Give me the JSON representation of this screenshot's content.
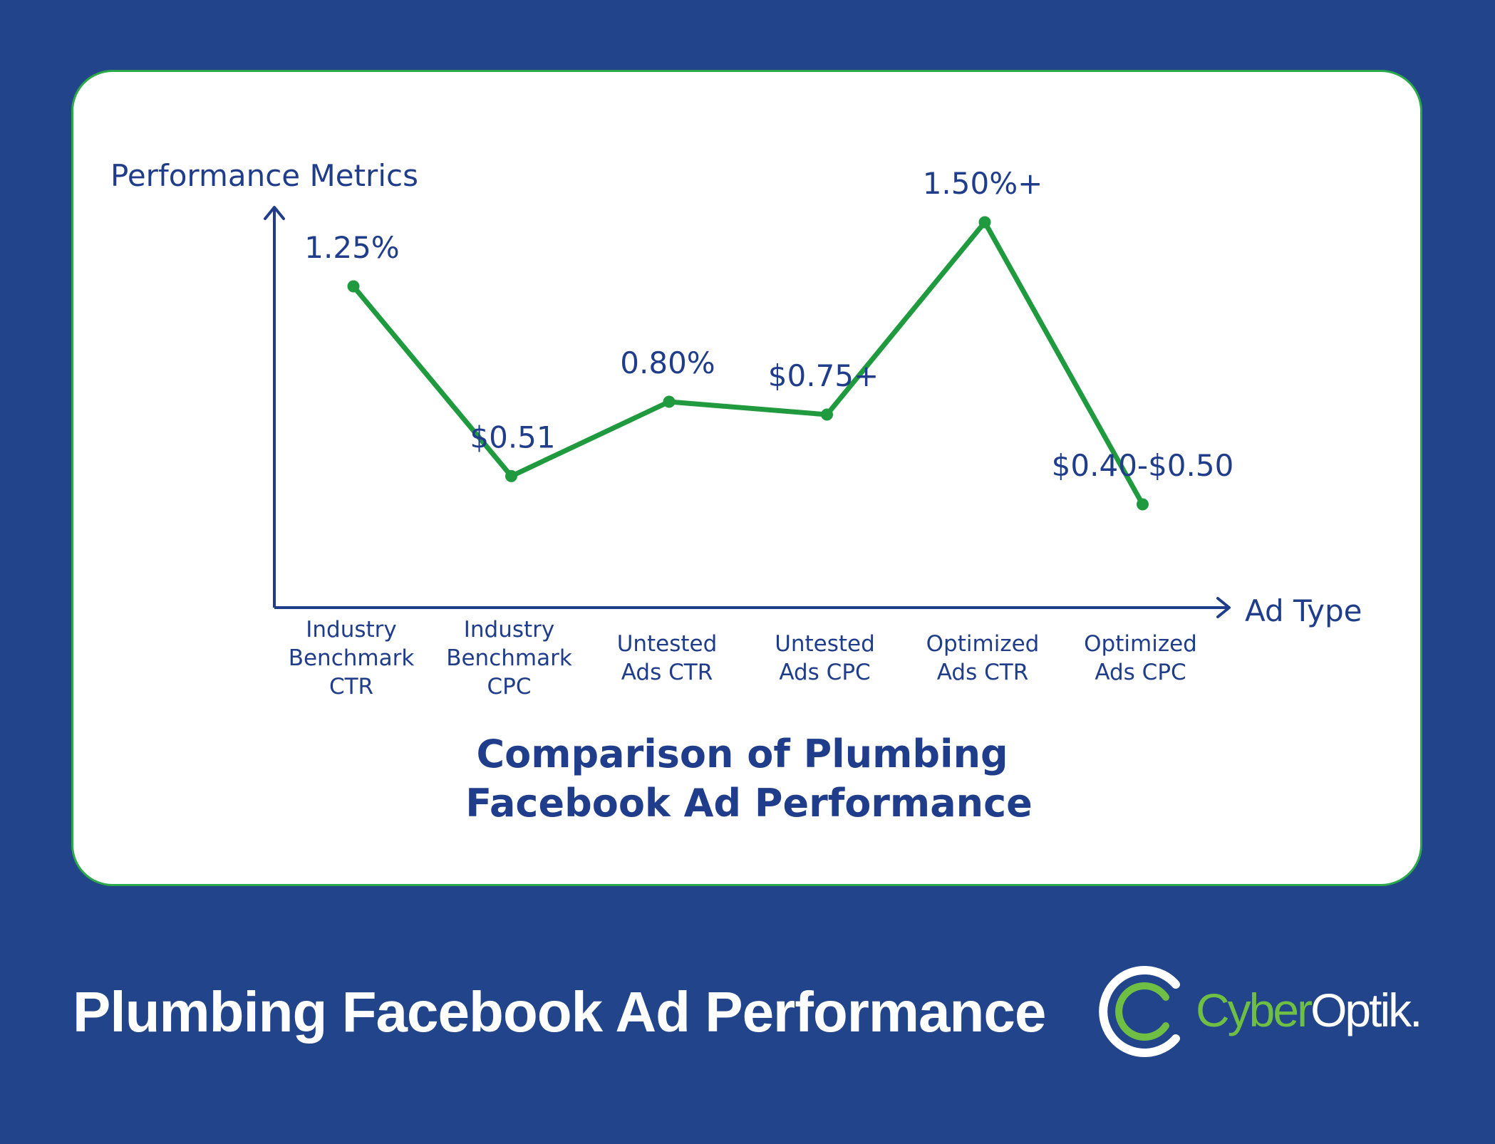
{
  "footer": {
    "title": "Plumbing Facebook Ad Performance"
  },
  "brand": {
    "name_part1": "Cyber",
    "name_part2": "Optik."
  },
  "colors": {
    "background": "#21448a",
    "line": "#1f9a3e",
    "text": "#1f3d8a",
    "card_border": "#2aa84a"
  },
  "chart_data": {
    "type": "line",
    "title": "Comparison of Plumbing Facebook Ad Performance",
    "title_lines": [
      "Comparison of Plumbing",
      "Facebook Ad Performance"
    ],
    "ylabel": "Performance Metrics",
    "xlabel": "Ad Type",
    "grid": false,
    "categories": [
      [
        "Industry",
        "Benchmark",
        "CTR"
      ],
      [
        "Industry",
        "Benchmark",
        "CPC"
      ],
      [
        "Untested",
        "Ads CTR"
      ],
      [
        "Untested",
        "Ads CPC"
      ],
      [
        "Optimized",
        "Ads CTR"
      ],
      [
        "Optimized",
        "Ads CPC"
      ]
    ],
    "values": [
      1.25,
      0.51,
      0.8,
      0.75,
      1.5,
      0.4
    ],
    "data_labels": [
      "1.25%",
      "$0.51",
      "0.80%",
      "$0.75+",
      "1.50%+",
      "$0.40-$0.50"
    ],
    "ylim": [
      0,
      1.7
    ]
  }
}
